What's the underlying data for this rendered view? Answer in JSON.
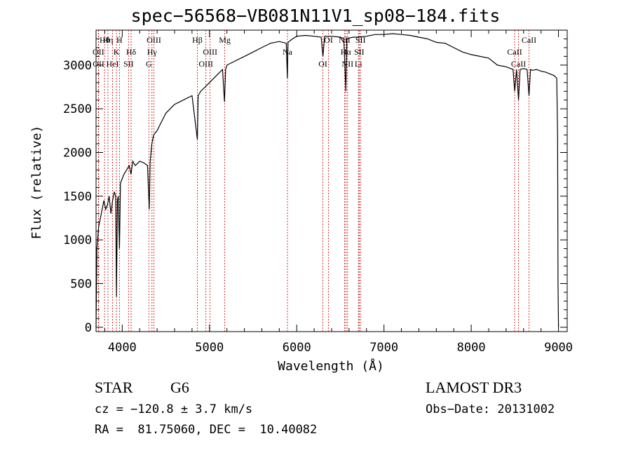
{
  "title": "spec−56568−VB081N11V1_sp08−184.fits",
  "info": {
    "object_class": "STAR",
    "subclass": "G6",
    "survey": "LAMOST DR3",
    "redshift": "cz = −120.8 ± 3.7 km/s",
    "obs_date": "Obs−Date: 20131002",
    "coords": "RA =  81.75060, DEC =  10.40082"
  },
  "chart_data": {
    "type": "line",
    "title": "spec−56568−VB081N11V1_sp08−184.fits",
    "xlabel": "Wavelength (Å)",
    "ylabel": "Flux (relative)",
    "xlim": [
      3700,
      9100
    ],
    "ylim": [
      -50,
      3400
    ],
    "xticks": [
      4000,
      5000,
      6000,
      7000,
      8000,
      9000
    ],
    "yticks": [
      0,
      500,
      1000,
      1500,
      2000,
      2500,
      3000
    ],
    "grid": false,
    "colors": {
      "spectrum": "#000000",
      "line_markers": "#cc0000"
    },
    "series": [
      {
        "x": [
          3700,
          3710,
          3730,
          3760,
          3790,
          3810,
          3830,
          3850,
          3870,
          3890,
          3910,
          3925,
          3934,
          3945,
          3955,
          3968,
          3980,
          4000,
          4020,
          4050,
          4080,
          4101,
          4120,
          4150,
          4200,
          4250,
          4290,
          4310,
          4320,
          4340,
          4360,
          4400,
          4450,
          4500,
          4600,
          4700,
          4800,
          4861,
          4870,
          4900,
          4950,
          5000,
          5050,
          5100,
          5150,
          5172,
          5185,
          5200,
          5300,
          5400,
          5500,
          5600,
          5700,
          5800,
          5880,
          5893,
          5900,
          5950,
          6000,
          6100,
          6200,
          6280,
          6300,
          6320,
          6400,
          6500,
          6540,
          6563,
          6575,
          6600,
          6650,
          6700,
          6800,
          6900,
          7000,
          7100,
          7200,
          7300,
          7400,
          7500,
          7600,
          7700,
          7800,
          7900,
          8000,
          8100,
          8200,
          8300,
          8400,
          8480,
          8498,
          8520,
          8542,
          8560,
          8600,
          8640,
          8662,
          8680,
          8700,
          8750,
          8800,
          8850,
          8900,
          8950,
          8980,
          8990,
          8995,
          9000
        ],
        "values": [
          0,
          900,
          1150,
          1300,
          1450,
          1350,
          1400,
          1500,
          1300,
          1450,
          1550,
          1500,
          350,
          1450,
          1500,
          900,
          1650,
          1700,
          1750,
          1800,
          1850,
          1750,
          1900,
          1850,
          1900,
          1880,
          1850,
          1350,
          1900,
          2100,
          2200,
          2250,
          2350,
          2450,
          2550,
          2600,
          2650,
          2150,
          2650,
          2700,
          2750,
          2800,
          2850,
          2900,
          2950,
          2580,
          2950,
          3000,
          3050,
          3100,
          3150,
          3200,
          3250,
          3270,
          3250,
          2850,
          3260,
          3300,
          3330,
          3340,
          3330,
          3320,
          3100,
          3330,
          3330,
          3320,
          3300,
          2700,
          3300,
          3310,
          3320,
          3320,
          3330,
          3350,
          3350,
          3360,
          3350,
          3340,
          3320,
          3300,
          3260,
          3250,
          3200,
          3150,
          3120,
          3100,
          3080,
          3000,
          2980,
          2950,
          2700,
          2950,
          2600,
          2950,
          2960,
          2950,
          2650,
          2950,
          2940,
          2950,
          2930,
          2920,
          2900,
          2880,
          2850,
          2200,
          500,
          0
        ]
      }
    ],
    "line_markers": [
      {
        "label": "Hθ",
        "x": 3798
      },
      {
        "label": "OII",
        "x": 3727
      },
      {
        "label": "OII",
        "x": 3729
      },
      {
        "label": "Hη",
        "x": 3836
      },
      {
        "label": "K",
        "x": 3934
      },
      {
        "label": "HeI",
        "x": 3889
      },
      {
        "label": "H",
        "x": 3968
      },
      {
        "label": "Hδ",
        "x": 4102
      },
      {
        "label": "SII",
        "x": 4072
      },
      {
        "label": "OIII",
        "x": 4363
      },
      {
        "label": "Hγ",
        "x": 4341
      },
      {
        "label": "G",
        "x": 4305
      },
      {
        "label": "Hβ",
        "x": 4861
      },
      {
        "label": "OIII",
        "x": 5007
      },
      {
        "label": "OIII",
        "x": 4959
      },
      {
        "label": "Mg",
        "x": 5175
      },
      {
        "label": "Na",
        "x": 5894
      },
      {
        "label": "OI",
        "x": 6300
      },
      {
        "label": "OI",
        "x": 6364
      },
      {
        "label": "Hα",
        "x": 6563
      },
      {
        "label": "NII",
        "x": 6583
      },
      {
        "label": "NII",
        "x": 6548
      },
      {
        "label": "SII",
        "x": 6716
      },
      {
        "label": "Li",
        "x": 6707
      },
      {
        "label": "SII",
        "x": 6731
      },
      {
        "label": "CaII",
        "x": 8498
      },
      {
        "label": "CaII",
        "x": 8542
      },
      {
        "label": "CaII",
        "x": 8662
      }
    ]
  }
}
